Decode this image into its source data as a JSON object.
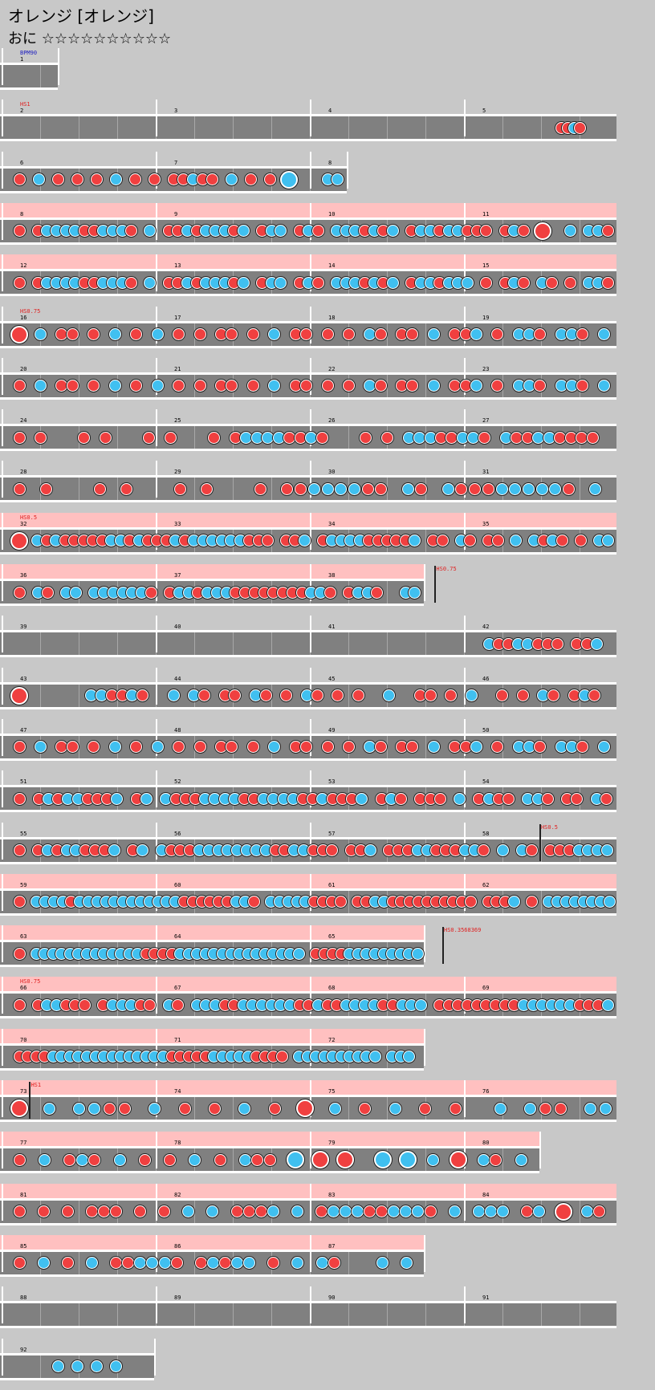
{
  "header": {
    "title": "オレンジ [オレンジ]",
    "difficulty": "おに",
    "stars": "☆☆☆☆☆☆☆☆☆☆"
  },
  "colors": {
    "background": "#c8c8c8",
    "track": "#808080",
    "highlight_band": "#ffc0c0",
    "don": "#f04040",
    "ka": "#40c0f0",
    "scroll_command": "#e02020",
    "bpm_command": "#2020c0"
  },
  "legend": {
    "don": "red note",
    "ka": "blue note",
    "big": "large note"
  },
  "chart": {
    "beats_per_measure": 4,
    "rows": [
      {
        "first": 1,
        "measures": 0.375,
        "band": false,
        "commands": [
          {
            "text": "BPM90",
            "kind": "bpm",
            "at": 0
          }
        ],
        "notes": ""
      },
      {
        "first": 2,
        "measures": 4,
        "band": false,
        "commands": [
          {
            "text": "HS1",
            "kind": "scroll",
            "at": 0
          }
        ],
        "notes": "................ ................ ................ ........................................ddkd........"
      },
      {
        "first": 6,
        "measures": 2.25,
        "band": false,
        "commands": [],
        "notes": "d.k.d.d.d.k.d.d. ddkdd.k.d.d.K... kk.."
      },
      {
        "first": 8,
        "measures": 4,
        "band": true,
        "commands": [],
        "notes": "d.dkkkkddkkkd.k. ddkdkkkdk.dkk.dk d.kkkdkdk.dkkdkk ddd.dkd.D..k.kkd.k"
      },
      {
        "first": 12,
        "measures": 4,
        "band": true,
        "commands": [],
        "notes": "d.dkkkkddkkkd.k. ddkdkkkdk.dkk.dk d.kkkdkdk.dkkdkk k.d.dkd.kd.d.kkdkd"
      },
      {
        "first": 16,
        "measures": 4,
        "band": false,
        "commands": [
          {
            "text": "HS0.75",
            "kind": "scroll",
            "at": 0
          }
        ],
        "notes": "D.k.dd.d.k.d.k.d. d.dd.d.k.dd.d.d.k d.dd.k.ddk.d.kkd. kkd.kkk"
      },
      {
        "first": 20,
        "measures": 4,
        "band": false,
        "commands": [],
        "notes": "d.k.dd.d.k.d.k.d. d.dd.d.k.dd.d.d.k d.dd.k.ddk.d.kkd. kkd.kkk"
      },
      {
        "first": 24,
        "measures": 4,
        "band": false,
        "commands": [],
        "notes": "d.d...d.d...d.d... d.dkkkkddkd...d. d.kkkddkkd.kddkkdddd.kd"
      },
      {
        "first": 28,
        "measures": 4,
        "band": false,
        "commands": [],
        "notes": "d.d...d.d...d.d... d.ddkkkkdd.kd.kdddkkkkkd.k.K"
      },
      {
        "first": 32,
        "measures": 4,
        "band": true,
        "commands": [
          {
            "text": "HS0.5",
            "kind": "scroll",
            "at": 0
          }
        ],
        "notes": "D.kdkdddddkkdkddd kdkkkkkkddd.ddk.dkkkkdddddk.dd.kd.dd.k.kdkd.d.kkdd"
      },
      {
        "first": 36,
        "measures": 2.75,
        "band": true,
        "commands": [
          {
            "text": "HS0.75",
            "kind": "scroll",
            "at": 2.7
          }
        ],
        "notes": "d.kd.kk.kkkkkkd.dkkdkkkddddddddkkd.dkkd..kk.D"
      },
      {
        "first": 39,
        "measures": 4,
        "band": false,
        "commands": [],
        "notes": "................ ................ ................ kddkkddd.ddk.kd"
      },
      {
        "first": 43,
        "measures": 4,
        "band": false,
        "commands": [],
        "notes": "D......kkddkd..k.kd.dd.kd.d.kd.d.d..k..dd.d.k..d.d.kd.dkd.kk"
      },
      {
        "first": 47,
        "measures": 4,
        "band": false,
        "commands": [],
        "notes": "d.k.dd.d.k.d.k.d.d.dd.d.k.dd.d.d.kd.dd.k.ddk.d.kkd.kkd.kkk"
      },
      {
        "first": 51,
        "measures": 4,
        "band": false,
        "commands": [],
        "notes": "d.dkdkkdddk.dk.kdddkkkkddkkkkddkdddk.dkd.ddd.k.dkdd.kkd.dd.kddd"
      },
      {
        "first": 55,
        "measures": 4,
        "band": false,
        "commands": [
          {
            "text": "HS0.5",
            "kind": "scroll",
            "at": 3.38
          }
        ],
        "notes": "d.dkdkkdddk.dk.kdddkkkkkkkkddkkddd.ddk.dddkkdddkkd.k.kd.dddkkkkkk"
      },
      {
        "first": 59,
        "measures": 4,
        "band": true,
        "commands": [],
        "notes": "d.kkkkdkkkkkkkkkkkkddddddkkd.kkkkkdddd.ddkkdddddddddd.dddk.d.kkkkkkkkkk"
      },
      {
        "first": 63,
        "measures": 2.75,
        "band": true,
        "commands": [
          {
            "text": "HS0.3568369",
            "kind": "scroll",
            "at": 2.75
          }
        ],
        "notes": "d.kkkkkkkkkkkkkddddkkkkkkkkkkkkkkk.ddddkkkkkkkkkkk"
      },
      {
        "first": 66,
        "measures": 4,
        "band": true,
        "commands": [
          {
            "text": "HS0.75",
            "kind": "scroll",
            "at": 0
          }
        ],
        "notes": "d.dkkddd.dkkkdd.kd.kkkddkkkkkkddkddkkkkddkkk.dddddddddkkkkkkdddkdd"
      },
      {
        "first": 70,
        "measures": 2.75,
        "band": true,
        "commands": [],
        "notes": "ddddkkkkkkkkkkkkkkdddddkkkkkdddd.kkkkkkkkkk.kkk.kk"
      },
      {
        "first": 73,
        "measures": 4,
        "band": true,
        "commands": [
          {
            "text": "HS1",
            "kind": "scroll",
            "at": 0.07
          }
        ],
        "notes": "D.k.kkdd.k.d.d.k.d.D.k.d.k.d.d..k.kdd.kkd"
      },
      {
        "first": 77,
        "measures": 3.5,
        "band": true,
        "commands": [],
        "notes": "d.k.dkd.k.d.d.k.d.kdd.K.D.D..K.K.k.D.kd.k.k"
      },
      {
        "first": 81,
        "measures": 4,
        "band": true,
        "commands": [],
        "notes": "d.d.d.ddd.d.d.k.k.dddk.k.dkkkddkkkd.k.kkk.dk.D.kd.k"
      },
      {
        "first": 85,
        "measures": 2.75,
        "band": true,
        "commands": [],
        "notes": "d.k.d.k.ddkkkd.dkdkk.d.k.kd...k.k.D"
      },
      {
        "first": 88,
        "measures": 4,
        "band": false,
        "commands": [],
        "notes": "................ ................ ................ ................"
      },
      {
        "first": 92,
        "measures": 1,
        "band": false,
        "commands": [],
        "notes": "..kkkk.."
      }
    ]
  }
}
